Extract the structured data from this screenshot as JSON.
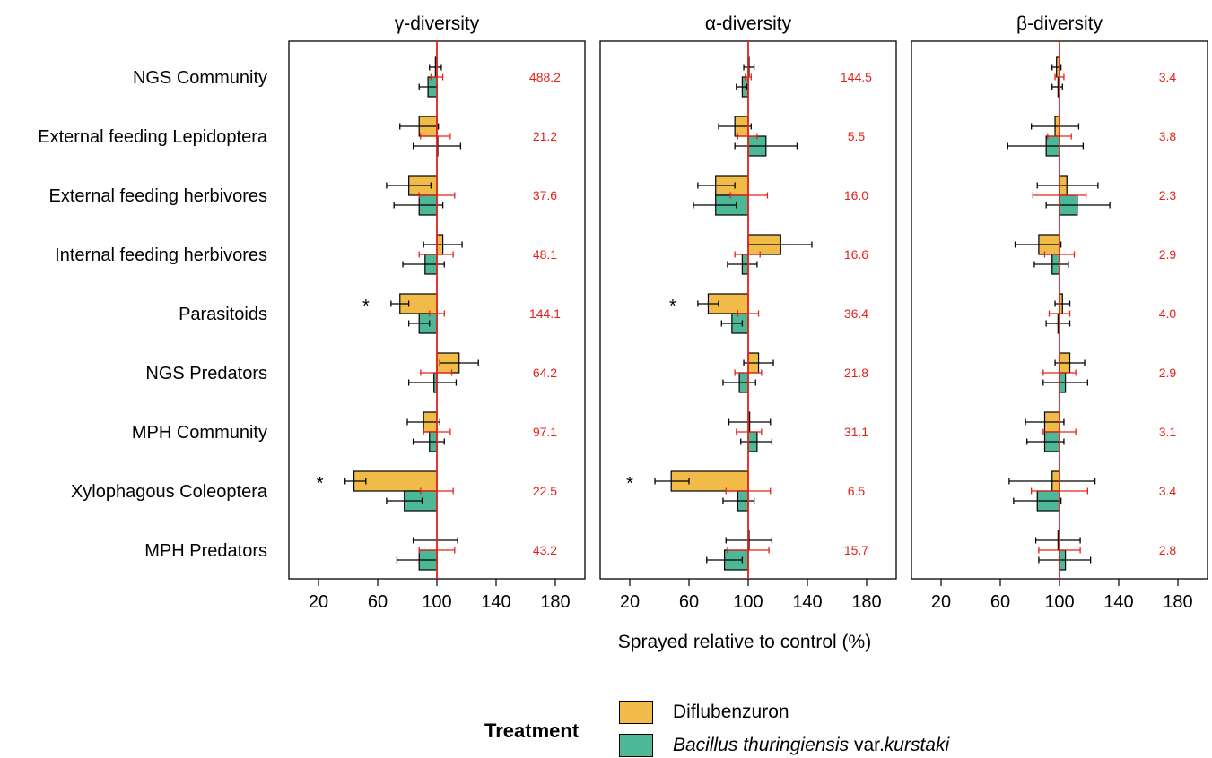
{
  "chart_data": {
    "type": "bar",
    "orientation": "horizontal",
    "xlabel": "Sprayed relative to control (%)",
    "xlim": [
      0,
      200
    ],
    "xticks": [
      20,
      60,
      100,
      140,
      180
    ],
    "reference_line": 100,
    "reference_color": "#e8201a",
    "categories": [
      "NGS Community",
      "External feeding Lepidoptera",
      "External feeding herbivores",
      "Internal feeding herbivores",
      "Parasitoids",
      "NGS Predators",
      "MPH Community",
      "Xylophagous Coleoptera",
      "MPH Predators"
    ],
    "series_style": [
      {
        "name": "Diflubenzuron",
        "color": "#f0bb48"
      },
      {
        "name": "Bacillus thuringiensis var.kurstaki",
        "color": "#4cb898"
      }
    ],
    "panels": [
      {
        "title": "γ-diversity",
        "control_labels": [
          "488.2",
          "21.2",
          "37.6",
          "48.1",
          "144.1",
          "64.2",
          "97.1",
          "22.5",
          "43.2"
        ],
        "significant": [
          false,
          false,
          false,
          false,
          true,
          false,
          false,
          true,
          false
        ],
        "diflubenzuron": [
          {
            "value": 99,
            "lo": 95,
            "hi": 103
          },
          {
            "value": 88,
            "lo": 75,
            "hi": 101
          },
          {
            "value": 81,
            "lo": 66,
            "hi": 96
          },
          {
            "value": 104,
            "lo": 91,
            "hi": 117
          },
          {
            "value": 75,
            "lo": 69,
            "hi": 81
          },
          {
            "value": 115,
            "lo": 102,
            "hi": 128
          },
          {
            "value": 91,
            "lo": 80,
            "hi": 102
          },
          {
            "value": 44,
            "lo": 38,
            "hi": 52
          }
        ],
        "btk": [
          {
            "value": 94,
            "lo": 88,
            "hi": 100
          },
          {
            "value": 100,
            "lo": 84,
            "hi": 116
          },
          {
            "value": 88,
            "lo": 71,
            "hi": 104
          },
          {
            "value": 92,
            "lo": 77,
            "hi": 105
          },
          {
            "value": 88,
            "lo": 81,
            "hi": 95
          },
          {
            "value": 98,
            "lo": 81,
            "hi": 113
          },
          {
            "value": 95,
            "lo": 84,
            "hi": 105
          },
          {
            "value": 78,
            "lo": 66,
            "hi": 90
          },
          {
            "value": 88,
            "lo": 73,
            "hi": 100
          }
        ],
        "control": [
          {
            "lo": 96,
            "hi": 104
          },
          {
            "lo": 89,
            "hi": 109
          },
          {
            "lo": 88,
            "hi": 112
          },
          {
            "lo": 88,
            "hi": 111
          },
          {
            "lo": 95,
            "hi": 105
          },
          {
            "lo": 89,
            "hi": 110
          },
          {
            "lo": 91,
            "hi": 109
          },
          {
            "lo": 89,
            "hi": 111
          },
          {
            "lo": 88,
            "hi": 112
          }
        ],
        "mph_predators_diflubenzuron": {
          "lo": 84,
          "hi": 114
        }
      },
      {
        "title": "α-diversity",
        "control_labels": [
          "144.5",
          "5.5",
          "16.0",
          "16.6",
          "36.4",
          "21.8",
          "31.1",
          "6.5",
          "15.7"
        ],
        "significant": [
          false,
          false,
          false,
          false,
          true,
          false,
          false,
          true,
          false
        ],
        "diflubenzuron": [
          {
            "value": 100,
            "lo": 97,
            "hi": 104
          },
          {
            "value": 91,
            "lo": 80,
            "hi": 102
          },
          {
            "value": 78,
            "lo": 66,
            "hi": 91
          },
          {
            "value": 122,
            "lo": 100,
            "hi": 143
          },
          {
            "value": 73,
            "lo": 66,
            "hi": 80
          },
          {
            "value": 107,
            "lo": 97,
            "hi": 117
          },
          {
            "value": 101,
            "lo": 87,
            "hi": 115
          },
          {
            "value": 48,
            "lo": 37,
            "hi": 60
          },
          {
            "value": 100,
            "lo": 85,
            "hi": 116
          }
        ],
        "btk": [
          {
            "value": 96,
            "lo": 92,
            "hi": 99
          },
          {
            "value": 112,
            "lo": 91,
            "hi": 133
          },
          {
            "value": 78,
            "lo": 63,
            "hi": 92
          },
          {
            "value": 96,
            "lo": 86,
            "hi": 106
          },
          {
            "value": 89,
            "lo": 82,
            "hi": 96
          },
          {
            "value": 94,
            "lo": 83,
            "hi": 105
          },
          {
            "value": 106,
            "lo": 95,
            "hi": 116
          },
          {
            "value": 93,
            "lo": 83,
            "hi": 104
          },
          {
            "value": 84,
            "lo": 72,
            "hi": 96
          }
        ],
        "control": [
          {
            "lo": 98,
            "hi": 102
          },
          {
            "lo": 93,
            "hi": 106
          },
          {
            "lo": 88,
            "hi": 113
          },
          {
            "lo": 91,
            "hi": 108
          },
          {
            "lo": 93,
            "hi": 107
          },
          {
            "lo": 91,
            "hi": 109
          },
          {
            "lo": 92,
            "hi": 109
          },
          {
            "lo": 85,
            "hi": 115
          },
          {
            "lo": 86,
            "hi": 114
          }
        ]
      },
      {
        "title": "β-diversity",
        "control_labels": [
          "3.4",
          "3.8",
          "2.3",
          "2.9",
          "4.0",
          "2.9",
          "3.1",
          "3.4",
          "2.8"
        ],
        "significant": [
          false,
          false,
          false,
          false,
          false,
          false,
          false,
          false,
          false
        ],
        "diflubenzuron": [
          {
            "value": 98,
            "lo": 95,
            "hi": 101
          },
          {
            "value": 97,
            "lo": 81,
            "hi": 113
          },
          {
            "value": 105,
            "lo": 85,
            "hi": 126
          },
          {
            "value": 86,
            "lo": 70,
            "hi": 101
          },
          {
            "value": 102,
            "lo": 97,
            "hi": 107
          },
          {
            "value": 107,
            "lo": 97,
            "hi": 117
          },
          {
            "value": 90,
            "lo": 77,
            "hi": 103
          },
          {
            "value": 95,
            "lo": 66,
            "hi": 124
          },
          {
            "value": 99,
            "lo": 84,
            "hi": 114
          }
        ],
        "btk": [
          {
            "value": 99,
            "lo": 95,
            "hi": 102
          },
          {
            "value": 91,
            "lo": 65,
            "hi": 116
          },
          {
            "value": 112,
            "lo": 91,
            "hi": 134
          },
          {
            "value": 95,
            "lo": 83,
            "hi": 106
          },
          {
            "value": 99,
            "lo": 91,
            "hi": 107
          },
          {
            "value": 104,
            "lo": 89,
            "hi": 119
          },
          {
            "value": 90,
            "lo": 78,
            "hi": 103
          },
          {
            "value": 85,
            "lo": 69,
            "hi": 101
          },
          {
            "value": 104,
            "lo": 86,
            "hi": 121
          }
        ],
        "control": [
          {
            "lo": 97,
            "hi": 103
          },
          {
            "lo": 92,
            "hi": 108
          },
          {
            "lo": 82,
            "hi": 118
          },
          {
            "lo": 90,
            "hi": 110
          },
          {
            "lo": 93,
            "hi": 107
          },
          {
            "lo": 89,
            "hi": 111
          },
          {
            "lo": 89,
            "hi": 111
          },
          {
            "lo": 81,
            "hi": 119
          },
          {
            "lo": 86,
            "hi": 114
          }
        ]
      }
    ]
  },
  "legend": {
    "title": "Treatment",
    "item_1": "Diflubenzuron",
    "item_2_italic": "Bacillus thuringiensis",
    "item_2_plain_1": " var.",
    "item_2_italic_2": "kurstaki"
  },
  "significance_marker": "*"
}
